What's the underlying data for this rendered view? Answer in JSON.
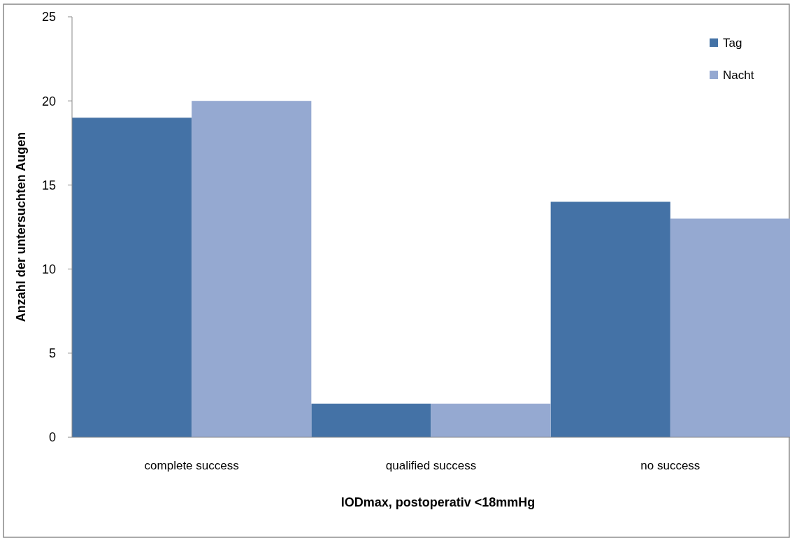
{
  "chart_data": {
    "type": "bar",
    "xlabel": "IODmax, postoperativ <18mmHg",
    "ylabel": "Anzahl der untersuchten Augen",
    "categories": [
      "complete success",
      "qualified success",
      "no success"
    ],
    "series": [
      {
        "name": "Tag",
        "color": "#4472a6",
        "values": [
          19,
          2,
          14
        ]
      },
      {
        "name": "Nacht",
        "color": "#95a9d1",
        "values": [
          20,
          2,
          13
        ]
      }
    ],
    "ylim": [
      0,
      25
    ],
    "yticks": [
      0,
      5,
      10,
      15,
      20,
      25
    ],
    "grid": false,
    "legend": "top right"
  }
}
